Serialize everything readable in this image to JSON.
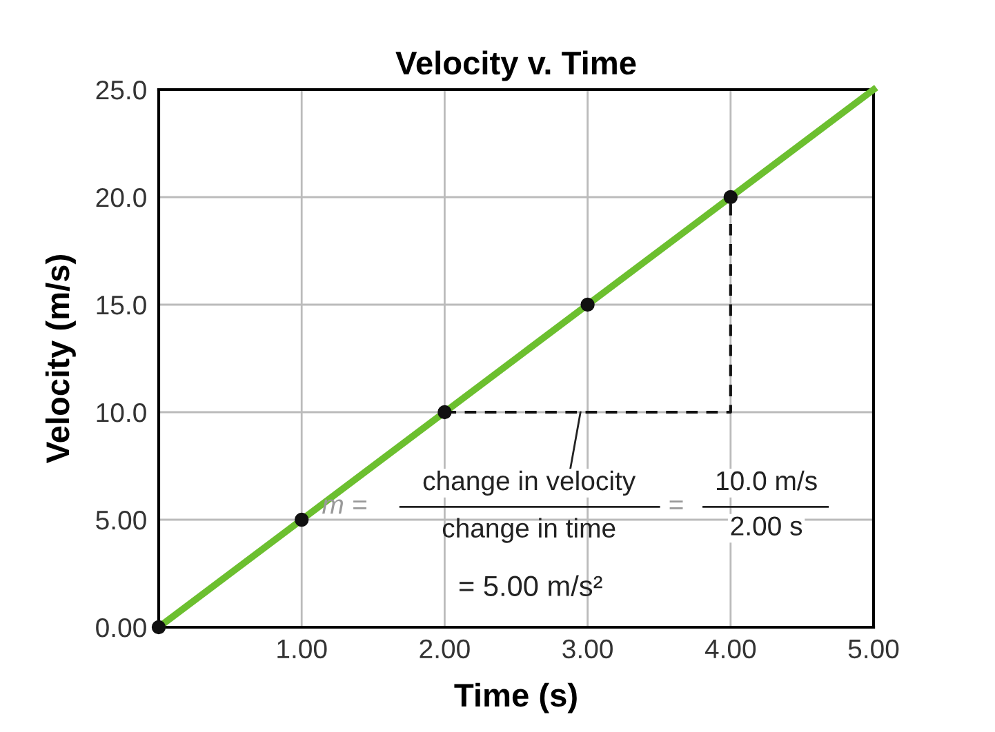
{
  "chart_data": {
    "type": "line",
    "title": "Velocity v. Time",
    "xlabel": "Time (s)",
    "ylabel": "Velocity (m/s)",
    "xlim": [
      0,
      5
    ],
    "ylim": [
      0,
      25
    ],
    "xticks": [
      {
        "value": 0,
        "label": null
      },
      {
        "value": 1,
        "label": "1.00"
      },
      {
        "value": 2,
        "label": "2.00"
      },
      {
        "value": 3,
        "label": "3.00"
      },
      {
        "value": 4,
        "label": "4.00"
      },
      {
        "value": 5,
        "label": "5.00"
      }
    ],
    "yticks": [
      {
        "value": 0,
        "label": "0.00"
      },
      {
        "value": 5,
        "label": "5.00"
      },
      {
        "value": 10,
        "label": "10.0"
      },
      {
        "value": 15,
        "label": "15.0"
      },
      {
        "value": 20,
        "label": "20.0"
      },
      {
        "value": 25,
        "label": "25.0"
      }
    ],
    "grid": true,
    "legend": false,
    "series": [
      {
        "color": "#6cbf2f",
        "x": [
          0,
          5
        ],
        "values": [
          0,
          25
        ],
        "marker": "none",
        "line_style": "solid"
      },
      {
        "type": "scatter",
        "color": "#111111",
        "x": [
          0,
          1,
          2,
          3,
          4
        ],
        "values": [
          0,
          5,
          10,
          15,
          20
        ],
        "marker": "circle"
      },
      {
        "type": "line",
        "color": "#111111",
        "x": [
          2,
          4,
          4
        ],
        "values": [
          10,
          10,
          20
        ],
        "marker": "none",
        "line_style": "dashed"
      }
    ],
    "annotations": [
      "m =",
      {
        "text": "change in velocity",
        "x": 2.95,
        "y": 10
      },
      "change in time",
      "=",
      "10.0 m/s",
      "2.00 s",
      "= 5.00 m/s²"
    ]
  }
}
